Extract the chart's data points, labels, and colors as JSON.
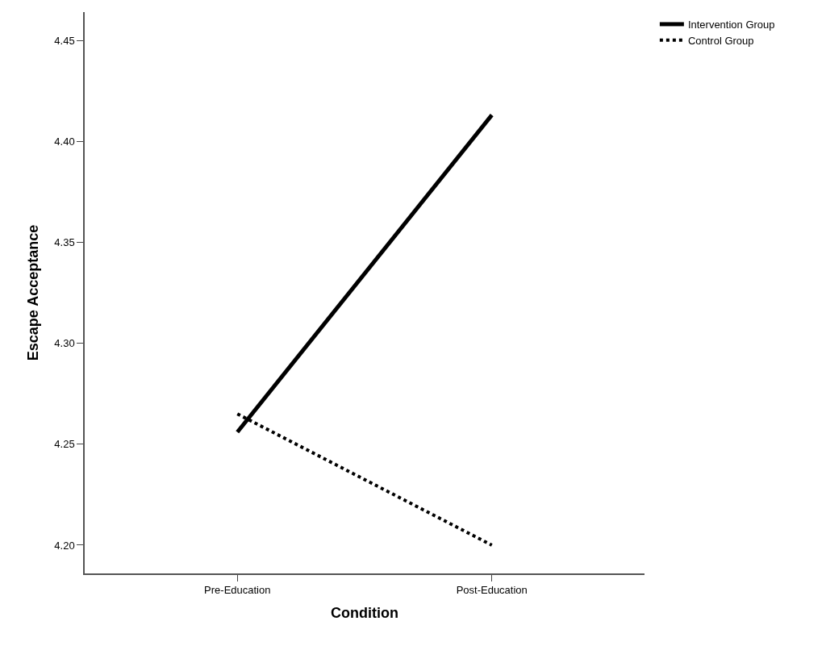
{
  "chart_data": {
    "type": "line",
    "xlabel": "Condition",
    "ylabel": "Escape Acceptance",
    "categories": [
      "Pre-Education",
      "Post-Education"
    ],
    "series": [
      {
        "name": "Intervention Group",
        "color": "#000000",
        "line_style": "solid",
        "values": [
          4.256,
          4.413
        ]
      },
      {
        "name": "Control Group",
        "color": "#000000",
        "line_style": "dotted",
        "values": [
          4.265,
          4.2
        ]
      }
    ],
    "ylim": [
      4.186,
      4.464
    ],
    "yticks": [
      {
        "value": 4.2,
        "label": "4.20"
      },
      {
        "value": 4.25,
        "label": "4.25"
      },
      {
        "value": 4.3,
        "label": "4.30"
      },
      {
        "value": 4.35,
        "label": "4.35"
      },
      {
        "value": 4.4,
        "label": "4.40"
      },
      {
        "value": 4.45,
        "label": "4.45"
      }
    ],
    "legend": "top right"
  }
}
